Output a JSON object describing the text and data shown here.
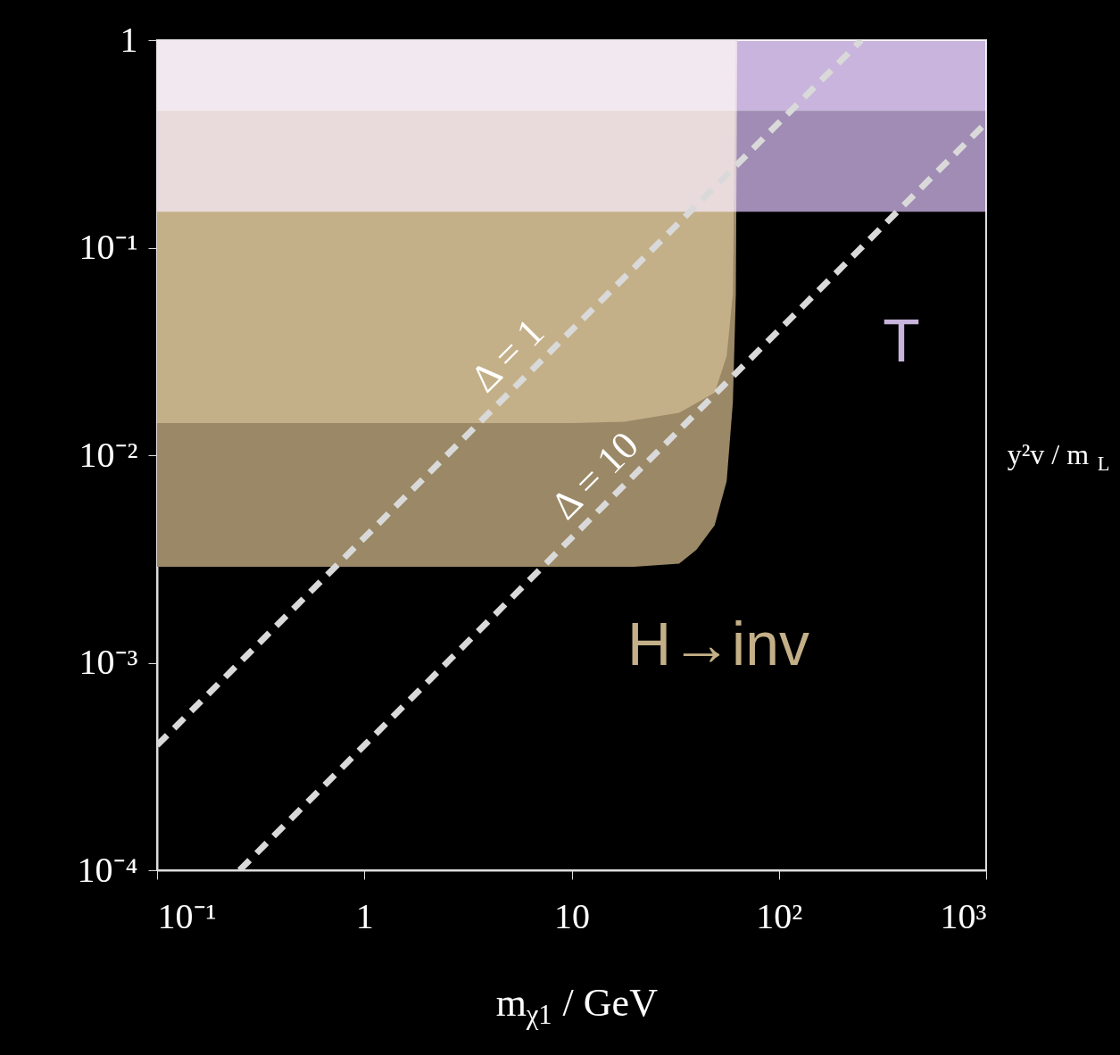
{
  "chart_data": {
    "type": "area",
    "xlabel": "m$_{χ1}$ / GeV",
    "ylabel": "y²v / m$_{L}$",
    "log": "xy",
    "grid": false,
    "xlim": [
      0.1,
      1000
    ],
    "ylim": [
      0.0001,
      1
    ],
    "xticks": [
      {
        "value": 0.1,
        "label": "10⁻¹"
      },
      1,
      10,
      {
        "value": 100,
        "label": "10²"
      },
      {
        "value": 1000,
        "label": "10³"
      }
    ],
    "yticks": [
      {
        "value": 0.0001,
        "label": "10⁻⁴"
      },
      {
        "value": 0.001,
        "label": "10⁻³"
      },
      {
        "value": 0.01,
        "label": "10⁻²"
      },
      {
        "value": 0.1,
        "label": "10⁻¹"
      },
      1
    ],
    "series": [
      {
        "color": "#9a8866",
        "x": [
          0.1,
          10,
          20,
          33,
          40,
          49,
          56,
          60,
          62,
          63
        ],
        "values": [
          0.0029,
          0.0029,
          0.0029,
          0.003,
          0.0035,
          0.0046,
          0.0075,
          0.018,
          0.06,
          1
        ]
      },
      {
        "color": "#c4b088",
        "x": [
          0.1,
          10,
          18,
          33,
          49,
          56,
          60,
          62
        ],
        "values": [
          0.0143,
          0.0143,
          0.0145,
          0.016,
          0.02,
          0.03,
          0.06,
          1
        ]
      },
      {
        "type": "line",
        "color": "#d9d9d9",
        "line_style": "dashed",
        "x": [
          0.1,
          250
        ],
        "values": [
          0.0004,
          1
        ]
      },
      {
        "type": "line",
        "color": "#d9d9d9",
        "line_style": "dashed",
        "x": [
          0.25,
          1000
        ],
        "values": [
          0.0001,
          0.4
        ]
      }
    ],
    "bands": [
      {
        "axis": "y",
        "from": 0.149,
        "to": 0.454,
        "color": "#a08cb4"
      },
      {
        "axis": "y",
        "from": 0.454,
        "to": 1,
        "color": "#c8b4dc"
      }
    ],
    "annotations": [
      {
        "text": "Δ = 1",
        "x": 7.5,
        "y": 0.03
      },
      {
        "text": "Δ = 10",
        "x": 19.8,
        "y": 0.0079
      },
      "T",
      "H→inv"
    ]
  }
}
